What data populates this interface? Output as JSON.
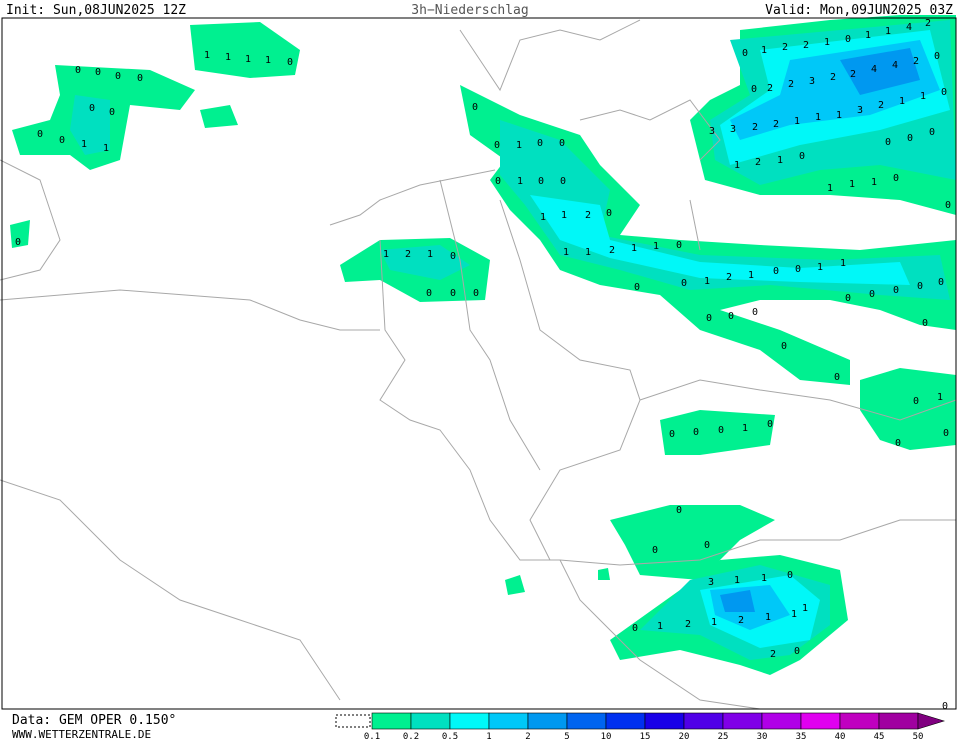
{
  "header": {
    "init": "Init: Sun,08JUN2025 12Z",
    "title": "3h−Niederschlag",
    "valid": "Valid: Mon,09JUN2025 03Z"
  },
  "footer": {
    "data": "Data: GEM OPER 0.150°",
    "site": "WWW.WETTERZENTRALE.DE"
  },
  "legend": {
    "ticks": [
      0.1,
      0.2,
      0.5,
      1,
      2,
      5,
      10,
      15,
      20,
      25,
      30,
      35,
      40,
      45,
      50
    ],
    "colors": [
      "#00f090",
      "#00e0c0",
      "#00f8f8",
      "#00c8f8",
      "#0098f0",
      "#0064f0",
      "#0030f0",
      "#1800e8",
      "#5000e8",
      "#8000e8",
      "#b000e8",
      "#e000f0",
      "#c000c0",
      "#a000a0",
      "#800080"
    ]
  },
  "map_labels": [
    1,
    1,
    1,
    1,
    0,
    0,
    0,
    0,
    0,
    0,
    0,
    0,
    0,
    1,
    1,
    0,
    0,
    0,
    1,
    0,
    0,
    0,
    1,
    0,
    0,
    1,
    1,
    2,
    0,
    1,
    1,
    2,
    1,
    1,
    0,
    0,
    0,
    1,
    2,
    1,
    0,
    0,
    1,
    1,
    0,
    0,
    0,
    0,
    0,
    0,
    0,
    0,
    0,
    0,
    0,
    1,
    2,
    1,
    0,
    0,
    0,
    0,
    0,
    1,
    2,
    2,
    1,
    0,
    1,
    1,
    4,
    2,
    0,
    2,
    2,
    3,
    2,
    2,
    4,
    4,
    2,
    0,
    3,
    3,
    2,
    2,
    1,
    1,
    1,
    3,
    2,
    1,
    1,
    0,
    1,
    2,
    1,
    0,
    0,
    0,
    0,
    1,
    1,
    1,
    0,
    0,
    0,
    1,
    0,
    0,
    0,
    0,
    0,
    1,
    0,
    0,
    0,
    0,
    3,
    1,
    1,
    0,
    1,
    0,
    1,
    2,
    1,
    2,
    1,
    1,
    2,
    0,
    0
  ]
}
